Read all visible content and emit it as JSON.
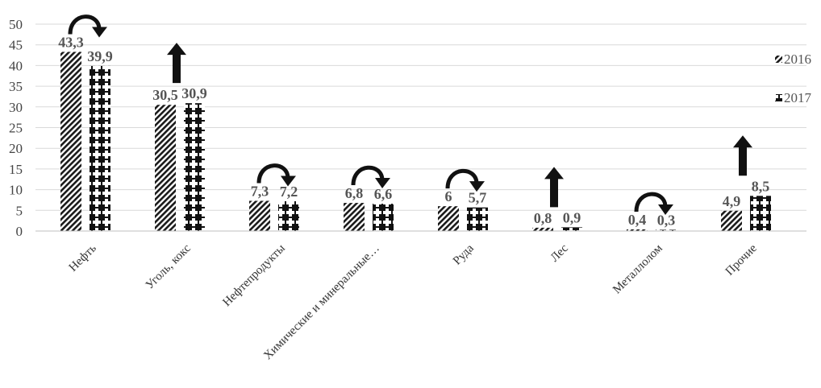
{
  "chart_data": {
    "type": "bar",
    "categories": [
      "Нефть",
      "Уголь, кокс",
      "Нефтепродукты",
      "Химические и минеральные…",
      "Руда",
      "Лес",
      "Металлолом",
      "Прочие"
    ],
    "series": [
      {
        "name": "2016",
        "values": [
          43.3,
          30.5,
          7.3,
          6.8,
          6,
          0.8,
          0.4,
          4.9
        ],
        "labels": [
          "43,3",
          "30,5",
          "7,3",
          "6,8",
          "6",
          "0,8",
          "0,4",
          "4,9"
        ],
        "pattern": "diagonal-hatch"
      },
      {
        "name": "2017",
        "values": [
          39.9,
          30.9,
          7.2,
          6.6,
          5.7,
          0.9,
          0.3,
          8.5
        ],
        "labels": [
          "39,9",
          "30,9",
          "7,2",
          "6,6",
          "5,7",
          "0,9",
          "0,3",
          "8,5"
        ],
        "pattern": "dots"
      }
    ],
    "trend_markers": [
      "curved-arrow",
      "up-arrow",
      "curved-arrow",
      "curved-arrow",
      "curved-arrow",
      "up-arrow",
      "curved-arrow",
      "up-arrow"
    ],
    "yticks": [
      "0",
      "5",
      "10",
      "15",
      "20",
      "25",
      "30",
      "35",
      "40",
      "45",
      "50"
    ],
    "ylim": [
      0,
      50
    ],
    "grid": true,
    "legend": "right",
    "title": "",
    "xlabel": "",
    "ylabel": ""
  }
}
